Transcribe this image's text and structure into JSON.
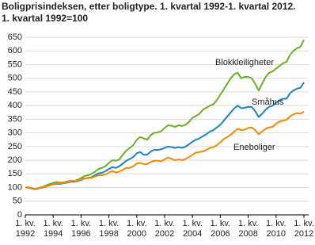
{
  "chart_data": {
    "type": "line",
    "title": "Boligprisindeksen, etter boligtype. 1. kvartal 1992-1. kvartal 2012.",
    "subtitle": "1. kvartal 1992=100",
    "x": [
      1992,
      1992.25,
      1992.5,
      1992.75,
      1993,
      1993.25,
      1993.5,
      1993.75,
      1994,
      1994.25,
      1994.5,
      1994.75,
      1995,
      1995.25,
      1995.5,
      1995.75,
      1996,
      1996.25,
      1996.5,
      1996.75,
      1997,
      1997.25,
      1997.5,
      1997.75,
      1998,
      1998.25,
      1998.5,
      1998.75,
      1999,
      1999.25,
      1999.5,
      1999.75,
      2000,
      2000.25,
      2000.5,
      2000.75,
      2001,
      2001.25,
      2001.5,
      2001.75,
      2002,
      2002.25,
      2002.5,
      2002.75,
      2003,
      2003.25,
      2003.5,
      2003.75,
      2004,
      2004.25,
      2004.5,
      2004.75,
      2005,
      2005.25,
      2005.5,
      2005.75,
      2006,
      2006.25,
      2006.5,
      2006.75,
      2007,
      2007.25,
      2007.5,
      2007.75,
      2008,
      2008.25,
      2008.5,
      2008.75,
      2009,
      2009.25,
      2009.5,
      2009.75,
      2010,
      2010.25,
      2010.5,
      2010.75,
      2011,
      2011.25,
      2011.5,
      2011.75,
      2012
    ],
    "series": [
      {
        "name": "Blokkleiligheter",
        "color": "#6ab023",
        "values": [
          100,
          101,
          97,
          94,
          99,
          103,
          108,
          113,
          117,
          120,
          118,
          119,
          122,
          125,
          124,
          128,
          135,
          142,
          145,
          150,
          158,
          168,
          172,
          178,
          190,
          200,
          198,
          203,
          220,
          235,
          245,
          255,
          275,
          285,
          280,
          275,
          292,
          300,
          302,
          306,
          318,
          328,
          326,
          322,
          328,
          325,
          330,
          340,
          355,
          362,
          370,
          385,
          392,
          400,
          405,
          420,
          440,
          460,
          480,
          500,
          515,
          520,
          500,
          505,
          505,
          500,
          480,
          455,
          480,
          505,
          520,
          525,
          535,
          545,
          555,
          560,
          585,
          600,
          610,
          615,
          640
        ]
      },
      {
        "name": "Småhus",
        "color": "#1a83c6",
        "values": [
          100,
          99,
          96,
          94,
          97,
          100,
          104,
          108,
          112,
          114,
          113,
          116,
          118,
          121,
          121,
          124,
          128,
          133,
          135,
          138,
          145,
          152,
          154,
          160,
          168,
          175,
          172,
          178,
          188,
          198,
          205,
          212,
          225,
          230,
          220,
          220,
          232,
          238,
          238,
          240,
          245,
          250,
          248,
          245,
          248,
          245,
          250,
          258,
          268,
          275,
          280,
          288,
          295,
          305,
          310,
          320,
          330,
          345,
          360,
          375,
          390,
          400,
          390,
          392,
          395,
          395,
          380,
          358,
          370,
          385,
          395,
          400,
          410,
          420,
          425,
          425,
          445,
          455,
          462,
          465,
          485
        ]
      },
      {
        "name": "Eneboliger",
        "color": "#f18a00",
        "values": [
          100,
          100,
          97,
          95,
          98,
          102,
          104,
          108,
          112,
          116,
          115,
          117,
          120,
          124,
          124,
          126,
          130,
          134,
          134,
          136,
          140,
          145,
          145,
          148,
          155,
          160,
          155,
          158,
          165,
          172,
          172,
          178,
          188,
          190,
          186,
          186,
          193,
          198,
          198,
          196,
          203,
          210,
          205,
          200,
          203,
          200,
          204,
          212,
          220,
          228,
          230,
          232,
          238,
          245,
          248,
          255,
          265,
          278,
          285,
          293,
          305,
          315,
          310,
          312,
          318,
          320,
          310,
          295,
          305,
          315,
          320,
          322,
          333,
          342,
          345,
          348,
          360,
          368,
          372,
          370,
          378
        ]
      }
    ],
    "xlim": [
      1992,
      2012
    ],
    "xticks": [
      {
        "value": 1992,
        "label": "1. kv.\n1992"
      },
      {
        "value": 1994,
        "label": "1. kv.\n1994"
      },
      {
        "value": 1996,
        "label": "1. kv.\n1996"
      },
      {
        "value": 1998,
        "label": "1. kv.\n1998"
      },
      {
        "value": 2000,
        "label": "1. kv.\n2000"
      },
      {
        "value": 2002,
        "label": "1. kv.\n2002"
      },
      {
        "value": 2004,
        "label": "1. kv.\n2004"
      },
      {
        "value": 2006,
        "label": "1. kv.\n2006"
      },
      {
        "value": 2008,
        "label": "1. kv.\n2008"
      },
      {
        "value": 2010,
        "label": "1. kv.\n2010"
      },
      {
        "value": 2012,
        "label": "1. kv.\n2012"
      }
    ],
    "ylim": [
      0,
      650
    ],
    "yticks": [
      0,
      50,
      100,
      150,
      200,
      250,
      300,
      350,
      400,
      450,
      500,
      550,
      600,
      650
    ],
    "grid": true
  }
}
